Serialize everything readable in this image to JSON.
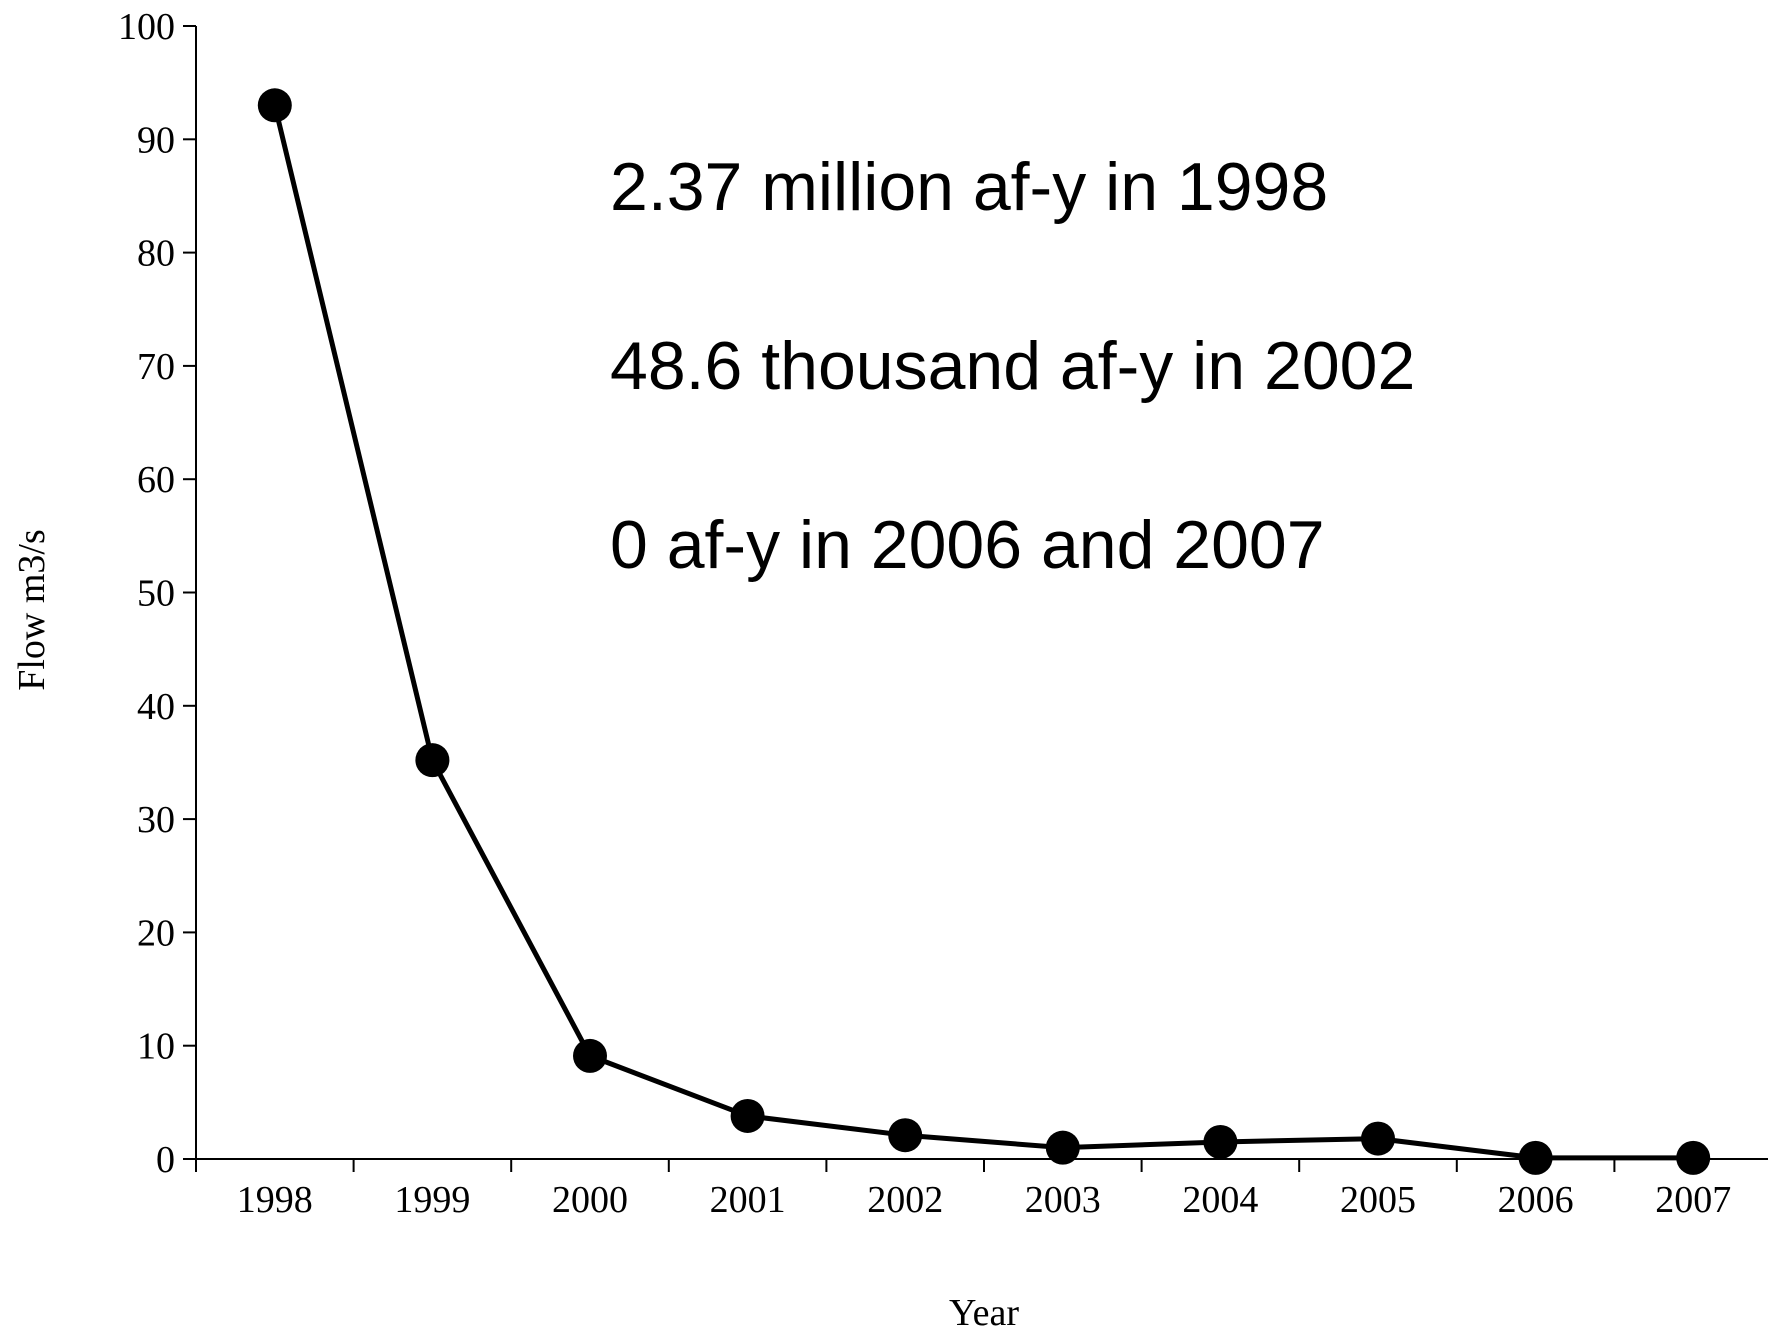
{
  "chart_data": {
    "type": "line",
    "xlabel": "Year",
    "ylabel": "Flow m3/s",
    "ylim": [
      0,
      100
    ],
    "yticks": [
      0,
      10,
      20,
      30,
      40,
      50,
      60,
      70,
      80,
      90,
      100
    ],
    "categories": [
      "1998",
      "1999",
      "2000",
      "2001",
      "2002",
      "2003",
      "2004",
      "2005",
      "2006",
      "2007"
    ],
    "series": [
      {
        "values": [
          93,
          35.2,
          9.1,
          3.8,
          2.1,
          1.0,
          1.5,
          1.8,
          0.1,
          0.1
        ]
      }
    ],
    "annotations": [
      "2.37 million af-y in 1998",
      "48.6 thousand af-y in 2002",
      "0 af-y in 2006 and 2007"
    ],
    "grid": false,
    "legend": "none",
    "colors": {
      "line": "#000000",
      "marker": "#000000"
    }
  }
}
